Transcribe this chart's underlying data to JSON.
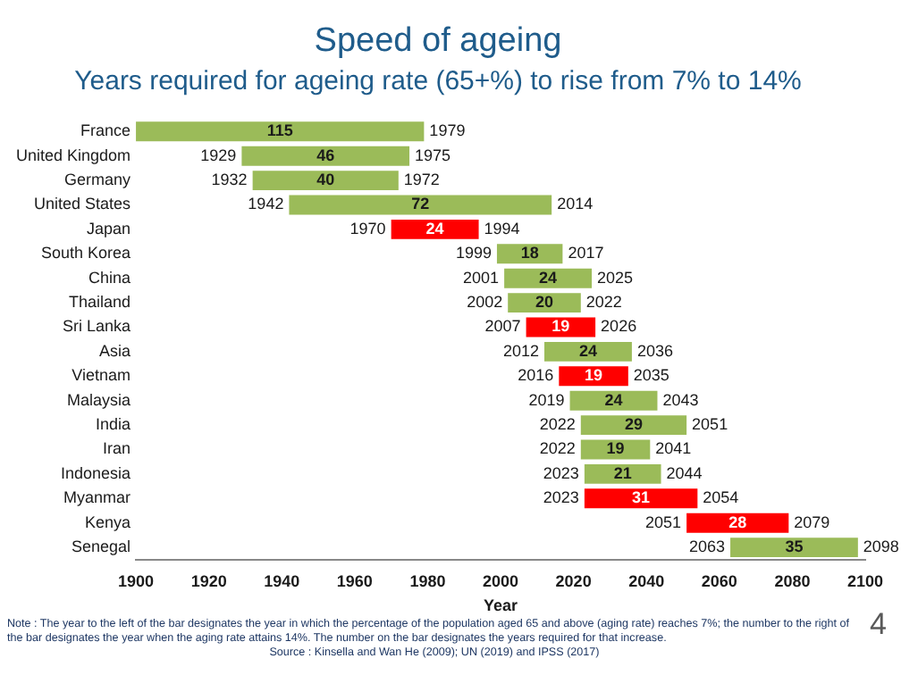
{
  "chart_data": {
    "type": "bar",
    "orientation": "horizontal",
    "title": "Speed of ageing",
    "subtitle": "Years required for ageing rate (65+%) to rise from 7% to 14%",
    "xlabel": "Year",
    "categories": [
      "France",
      "United Kingdom",
      "Germany",
      "United States",
      "Japan",
      "South Korea",
      "China",
      "Thailand",
      "Sri Lanka",
      "Asia",
      "Vietnam",
      "Malaysia",
      "India",
      "Iran",
      "Indonesia",
      "Myanmar",
      "Kenya",
      "Senegal"
    ],
    "base": [
      1864,
      1929,
      1932,
      1942,
      1970,
      1999,
      2001,
      2002,
      2007,
      2012,
      2016,
      2019,
      2022,
      2022,
      2023,
      2023,
      2051,
      2063
    ],
    "values": [
      115,
      46,
      40,
      72,
      24,
      18,
      24,
      20,
      19,
      24,
      19,
      24,
      29,
      19,
      21,
      31,
      28,
      35
    ],
    "colors": [
      "#9bbb59",
      "#9bbb59",
      "#9bbb59",
      "#9bbb59",
      "#ff0000",
      "#9bbb59",
      "#9bbb59",
      "#9bbb59",
      "#ff0000",
      "#9bbb59",
      "#ff0000",
      "#9bbb59",
      "#9bbb59",
      "#9bbb59",
      "#9bbb59",
      "#ff0000",
      "#ff0000",
      "#9bbb59"
    ],
    "data_labels": true,
    "xlim": [
      1900,
      2100
    ],
    "xticks": [
      1900,
      1920,
      1940,
      1960,
      1980,
      2000,
      2020,
      2040,
      2060,
      2080,
      2100
    ],
    "grid": false,
    "legend": false,
    "annotations": [
      {
        "text": "1979",
        "x": 1979,
        "y": "France"
      },
      {
        "text": "1929",
        "x": 1929,
        "y": "United Kingdom"
      },
      {
        "text": "1975",
        "x": 1975,
        "y": "United Kingdom"
      },
      {
        "text": "1932",
        "x": 1932,
        "y": "Germany"
      },
      {
        "text": "1972",
        "x": 1972,
        "y": "Germany"
      },
      {
        "text": "1942",
        "x": 1942,
        "y": "United States"
      },
      {
        "text": "2014",
        "x": 2014,
        "y": "United States"
      },
      {
        "text": "1970",
        "x": 1970,
        "y": "Japan"
      },
      {
        "text": "1994",
        "x": 1994,
        "y": "Japan"
      },
      {
        "text": "1999",
        "x": 1999,
        "y": "South Korea"
      },
      {
        "text": "2017",
        "x": 2017,
        "y": "South Korea"
      },
      {
        "text": "2001",
        "x": 2001,
        "y": "China"
      },
      {
        "text": "2025",
        "x": 2025,
        "y": "China"
      },
      {
        "text": "2002",
        "x": 2002,
        "y": "Thailand"
      },
      {
        "text": "2022",
        "x": 2022,
        "y": "Thailand"
      },
      {
        "text": "2007",
        "x": 2007,
        "y": "Sri Lanka"
      },
      {
        "text": "2026",
        "x": 2026,
        "y": "Sri Lanka"
      },
      {
        "text": "2012",
        "x": 2012,
        "y": "Asia"
      },
      {
        "text": "2036",
        "x": 2036,
        "y": "Asia"
      },
      {
        "text": "2016",
        "x": 2016,
        "y": "Vietnam"
      },
      {
        "text": "2035",
        "x": 2035,
        "y": "Vietnam"
      },
      {
        "text": "2019",
        "x": 2019,
        "y": "Malaysia"
      },
      {
        "text": "2043",
        "x": 2043,
        "y": "Malaysia"
      },
      {
        "text": "2022",
        "x": 2022,
        "y": "India"
      },
      {
        "text": "2051",
        "x": 2051,
        "y": "India"
      },
      {
        "text": "2022",
        "x": 2022,
        "y": "Iran"
      },
      {
        "text": "2041",
        "x": 2041,
        "y": "Iran"
      },
      {
        "text": "2023",
        "x": 2023,
        "y": "Indonesia"
      },
      {
        "text": "2044",
        "x": 2044,
        "y": "Indonesia"
      },
      {
        "text": "2023",
        "x": 2023,
        "y": "Myanmar"
      },
      {
        "text": "2054",
        "x": 2054,
        "y": "Myanmar"
      },
      {
        "text": "2051",
        "x": 2051,
        "y": "Kenya"
      },
      {
        "text": "2079",
        "x": 2079,
        "y": "Kenya"
      },
      {
        "text": "2063",
        "x": 2063,
        "y": "Senegal"
      },
      {
        "text": "2098",
        "x": 2098,
        "y": "Senegal"
      },
      "Note : The year to the left of the bar designates the year in which the percentage of the population aged 65 and above (aging rate) reaches 7%; the number to the right of the bar designates the year when the aging rate attains 14%. The number on the bar designates the years required for that increase.",
      "Source : Kinsella and Wan He (2009); UN (2019) and IPSS (2017)",
      "4"
    ]
  }
}
